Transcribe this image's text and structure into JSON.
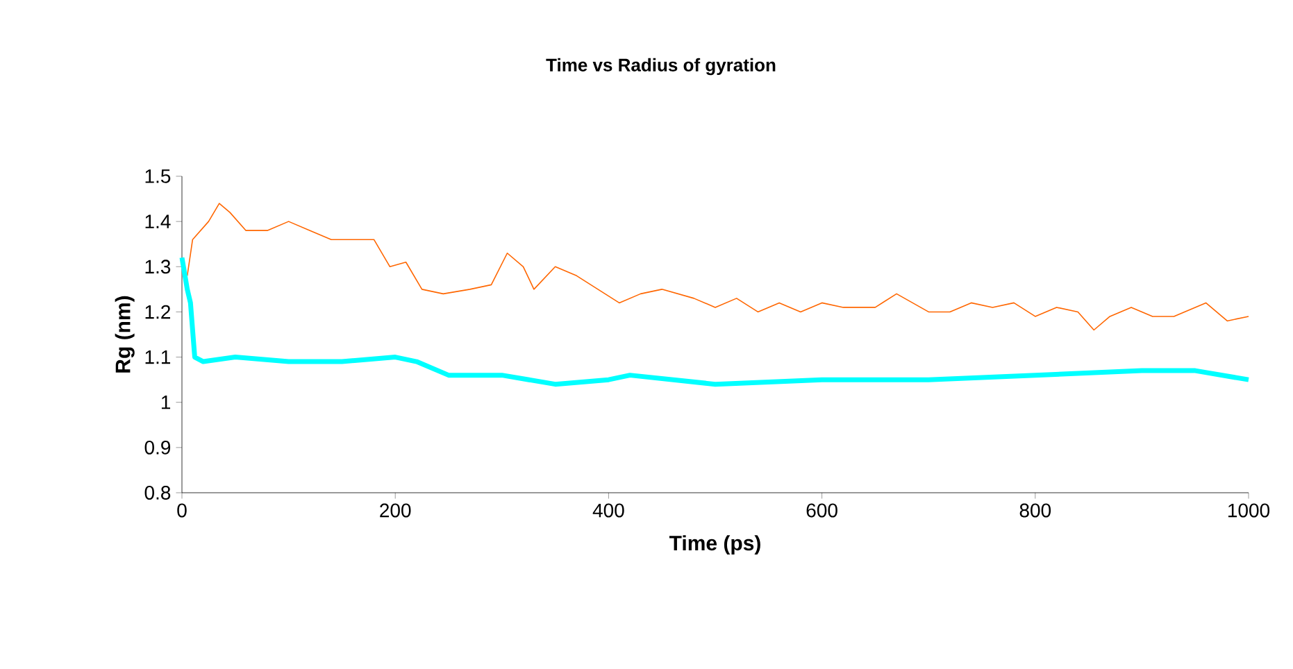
{
  "chart_data": {
    "type": "line",
    "title": "Time vs Radius of gyration",
    "xlabel": "Time (ps)",
    "ylabel": "Rg (nm)",
    "xlim": [
      0,
      1000
    ],
    "xticks": [
      0,
      200,
      400,
      600,
      800,
      1000
    ],
    "ylim": [
      0.8,
      1.5
    ],
    "yticks": [
      0.8,
      0.9,
      1,
      1.1,
      1.2,
      1.3,
      1.4,
      1.5
    ],
    "grid": false,
    "marker": "none",
    "line_style": "solid",
    "series": [
      {
        "color": "#ff6600",
        "x": [
          5,
          10,
          25,
          35,
          45,
          60,
          80,
          100,
          120,
          140,
          160,
          180,
          195,
          210,
          225,
          245,
          270,
          290,
          305,
          320,
          330,
          350,
          370,
          390,
          410,
          430,
          450,
          480,
          500,
          520,
          540,
          560,
          580,
          600,
          620,
          650,
          670,
          700,
          720,
          740,
          760,
          780,
          800,
          820,
          840,
          855,
          870,
          890,
          910,
          930,
          960,
          980,
          1000
        ],
        "values": [
          1.28,
          1.36,
          1.4,
          1.44,
          1.42,
          1.38,
          1.38,
          1.4,
          1.38,
          1.36,
          1.36,
          1.36,
          1.3,
          1.31,
          1.25,
          1.24,
          1.25,
          1.26,
          1.33,
          1.3,
          1.25,
          1.3,
          1.28,
          1.25,
          1.22,
          1.24,
          1.25,
          1.23,
          1.21,
          1.23,
          1.2,
          1.22,
          1.2,
          1.22,
          1.21,
          1.21,
          1.24,
          1.2,
          1.2,
          1.22,
          1.21,
          1.22,
          1.19,
          1.21,
          1.2,
          1.16,
          1.19,
          1.21,
          1.19,
          1.19,
          1.22,
          1.18,
          1.19
        ]
      },
      {
        "color": "#00ffff",
        "x": [
          0,
          5,
          8,
          12,
          20,
          50,
          100,
          150,
          200,
          220,
          250,
          300,
          350,
          400,
          420,
          500,
          600,
          700,
          800,
          900,
          950,
          1000
        ],
        "values": [
          1.32,
          1.25,
          1.22,
          1.1,
          1.09,
          1.1,
          1.09,
          1.09,
          1.1,
          1.09,
          1.06,
          1.06,
          1.04,
          1.05,
          1.06,
          1.04,
          1.05,
          1.05,
          1.06,
          1.07,
          1.07,
          1.05
        ]
      }
    ]
  }
}
